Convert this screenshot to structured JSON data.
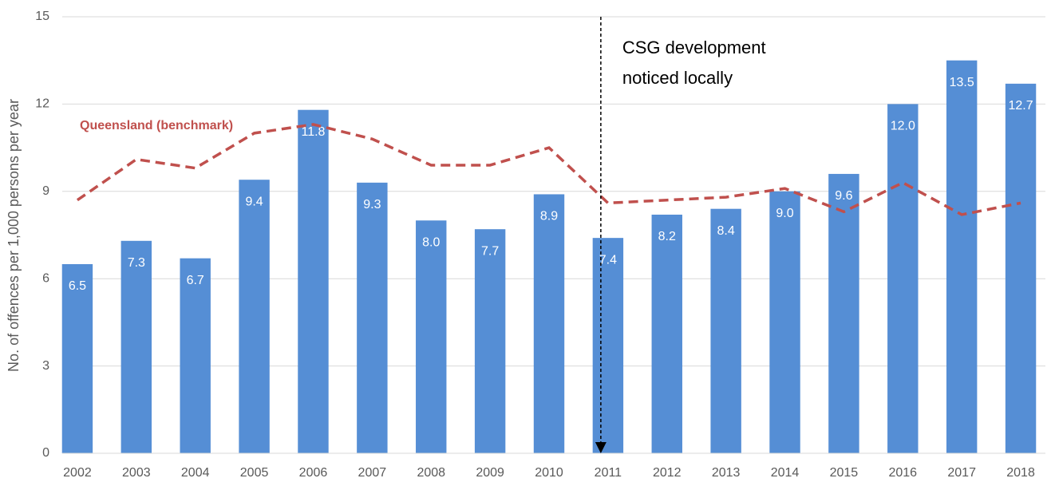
{
  "chart_data": {
    "type": "bar",
    "y_label": "No. of offences per 1,000 persons per year",
    "categories": [
      "2002",
      "2003",
      "2004",
      "2005",
      "2006",
      "2007",
      "2008",
      "2009",
      "2010",
      "2011",
      "2012",
      "2013",
      "2014",
      "2015",
      "2016",
      "2017",
      "2018"
    ],
    "values": [
      6.5,
      7.3,
      6.7,
      9.4,
      11.8,
      9.3,
      8.0,
      7.7,
      8.9,
      7.4,
      8.2,
      8.4,
      9.0,
      9.6,
      12.0,
      13.5,
      12.7
    ],
    "value_labels": [
      "6.5",
      "7.3",
      "6.7",
      "9.4",
      "11.8",
      "9.3",
      "8.0",
      "7.7",
      "8.9",
      "7.4",
      "8.2",
      "8.4",
      "9.0",
      "9.6",
      "12.0",
      "13.5",
      "12.7"
    ],
    "color": "#558ed5",
    "overlay": {
      "type": "line",
      "name": "Queensland (benchmark)",
      "color": "#c0504d",
      "values": [
        8.7,
        10.1,
        9.8,
        11.0,
        11.3,
        10.8,
        9.9,
        9.9,
        10.5,
        8.6,
        8.7,
        8.8,
        9.1,
        8.3,
        9.3,
        8.2,
        8.6
      ]
    },
    "annotation": {
      "lines": [
        "CSG development",
        "noticed locally"
      ],
      "category": "2011"
    },
    "ylim": [
      0,
      15
    ],
    "yticks": [
      0,
      3,
      6,
      9,
      12,
      15
    ],
    "grid": true
  }
}
